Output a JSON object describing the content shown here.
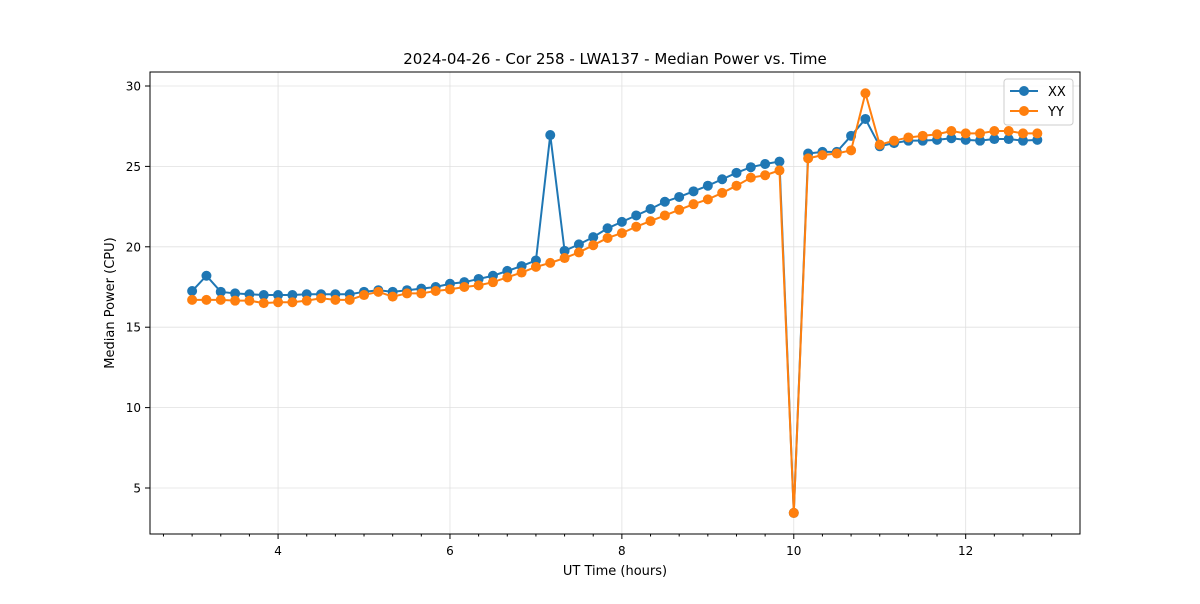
{
  "chart_data": {
    "type": "line",
    "title": "2024-04-26 - Cor 258 - LWA137 - Median Power vs. Time",
    "xlabel": "UT Time (hours)",
    "ylabel": "Median Power (CPU)",
    "xlim": [
      2.51,
      13.33
    ],
    "ylim": [
      2.14,
      30.87
    ],
    "xticks": [
      4,
      6,
      8,
      10,
      12
    ],
    "xtick_labels": [
      "4",
      "6",
      "8",
      "10",
      "12"
    ],
    "yticks": [
      5,
      10,
      15,
      20,
      25,
      30
    ],
    "ytick_labels": [
      "5",
      "10",
      "15",
      "20",
      "25",
      "30"
    ],
    "grid": true,
    "legend_position": "top-right",
    "x_start": 3.0,
    "x_step_hours": 0.16667,
    "series": [
      {
        "name": "XX",
        "color": "#1f77b4",
        "values": [
          17.25,
          18.2,
          17.2,
          17.1,
          17.05,
          17.0,
          17.0,
          17.0,
          17.05,
          17.05,
          17.05,
          17.05,
          17.2,
          17.3,
          17.2,
          17.3,
          17.4,
          17.5,
          17.7,
          17.8,
          18.0,
          18.2,
          18.5,
          18.8,
          19.15,
          26.95,
          19.75,
          20.15,
          20.6,
          21.15,
          21.55,
          21.95,
          22.35,
          22.8,
          23.1,
          23.45,
          23.8,
          24.2,
          24.6,
          24.95,
          25.15,
          25.3,
          3.45,
          25.8,
          25.9,
          25.9,
          26.9,
          27.95,
          26.25,
          26.45,
          26.6,
          26.6,
          26.65,
          26.75,
          26.65,
          26.6,
          26.7,
          26.7,
          26.6,
          26.65
        ]
      },
      {
        "name": "YY",
        "color": "#ff7f0e",
        "values": [
          16.7,
          16.7,
          16.7,
          16.65,
          16.65,
          16.5,
          16.55,
          16.55,
          16.65,
          16.8,
          16.7,
          16.7,
          17.0,
          17.2,
          16.9,
          17.1,
          17.1,
          17.25,
          17.35,
          17.5,
          17.6,
          17.8,
          18.1,
          18.4,
          18.75,
          19.0,
          19.3,
          19.65,
          20.1,
          20.55,
          20.85,
          21.25,
          21.6,
          21.95,
          22.3,
          22.65,
          22.95,
          23.35,
          23.8,
          24.3,
          24.45,
          24.75,
          3.45,
          25.5,
          25.7,
          25.8,
          26.0,
          29.55,
          26.35,
          26.6,
          26.8,
          26.9,
          27.0,
          27.2,
          27.05,
          27.05,
          27.2,
          27.2,
          27.05,
          27.05
        ]
      }
    ]
  }
}
